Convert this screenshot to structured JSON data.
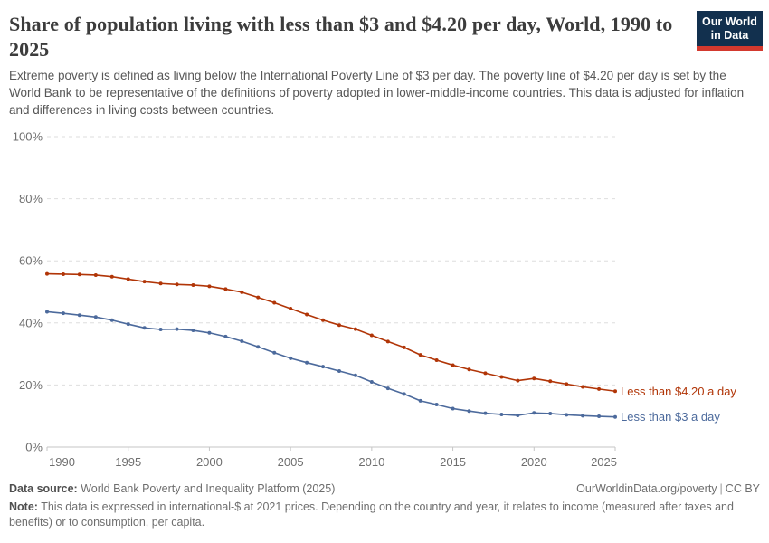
{
  "header": {
    "title": "Share of population living with less than $3 and $4.20 per day, World, 1990 to 2025",
    "subtitle": "Extreme poverty is defined as living below the International Poverty Line of $3 per day. The poverty line of $4.20 per day is set by the World Bank to be representative of the definitions of poverty adopted in lower-middle-income countries. This data is adjusted for inflation and differences in living costs between countries.",
    "logo": {
      "line1": "Our World",
      "line2": "in Data",
      "bg_color": "#12304e",
      "stripe_color": "#d3392e",
      "text_color": "#ffffff"
    }
  },
  "chart_data": {
    "type": "line",
    "title": "Share of population living with less than $3 and $4.20 per day, World, 1990 to 2025",
    "xlabel": "",
    "ylabel": "",
    "xlim": [
      1990,
      2025
    ],
    "ylim": [
      0,
      100
    ],
    "grid": "horizontal-dashed",
    "legend_position": "right-end-labels",
    "xticks": [
      1990,
      1995,
      2000,
      2005,
      2010,
      2015,
      2020,
      2025
    ],
    "yticks": [
      0,
      20,
      40,
      60,
      80,
      100
    ],
    "ytick_labels": [
      "0%",
      "20%",
      "40%",
      "60%",
      "80%",
      "100%"
    ],
    "x": [
      1990,
      1991,
      1992,
      1993,
      1994,
      1995,
      1996,
      1997,
      1998,
      1999,
      2000,
      2001,
      2002,
      2003,
      2004,
      2005,
      2006,
      2007,
      2008,
      2009,
      2010,
      2011,
      2012,
      2013,
      2014,
      2015,
      2016,
      2017,
      2018,
      2019,
      2020,
      2021,
      2022,
      2023,
      2024,
      2025
    ],
    "series": [
      {
        "name": "Less than $4.20 a day",
        "color": "#b13507",
        "values": [
          55.8,
          55.7,
          55.6,
          55.4,
          54.9,
          54.1,
          53.3,
          52.7,
          52.4,
          52.2,
          51.8,
          50.9,
          49.9,
          48.2,
          46.5,
          44.6,
          42.7,
          40.9,
          39.3,
          38.0,
          36.0,
          34.0,
          32.1,
          29.7,
          28.0,
          26.4,
          25.0,
          23.8,
          22.6,
          21.4,
          22.1,
          21.2,
          20.3,
          19.4,
          18.7,
          18.0
        ]
      },
      {
        "name": "Less than $3 a day",
        "color": "#4c6a9c",
        "values": [
          43.6,
          43.1,
          42.5,
          41.9,
          40.9,
          39.6,
          38.4,
          37.9,
          38.0,
          37.6,
          36.8,
          35.6,
          34.1,
          32.3,
          30.4,
          28.6,
          27.2,
          25.9,
          24.5,
          23.1,
          21.0,
          18.9,
          17.1,
          14.9,
          13.7,
          12.4,
          11.6,
          10.9,
          10.5,
          10.2,
          11.0,
          10.8,
          10.4,
          10.1,
          9.9,
          9.7
        ]
      }
    ]
  },
  "footer": {
    "source_label": "Data source:",
    "source_value": "World Bank Poverty and Inequality Platform (2025)",
    "link": "OurWorldinData.org/poverty",
    "separator": "|",
    "license": "CC BY",
    "note_label": "Note:",
    "note_value": "This data is expressed in international-$ at 2021 prices. Depending on the country and year, it relates to income (measured after taxes and benefits) or to consumption, per capita."
  }
}
